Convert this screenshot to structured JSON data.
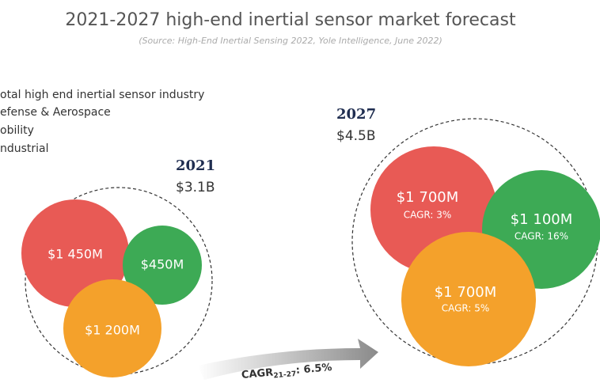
{
  "header": {
    "title": "2021-2027 high-end inertial sensor market forecast",
    "source": "(Source: High-End Inertial Sensing 2022, Yole Intelligence, June 2022)"
  },
  "legend": [
    "otal high end inertial sensor industry",
    "efense & Aerospace",
    "obility",
    "ndustrial"
  ],
  "year_2021": {
    "year": "2021",
    "total": "$3.1B",
    "bubbles": [
      {
        "value": "$1 450M"
      },
      {
        "value": "$450M"
      },
      {
        "value": "$1 200M"
      }
    ]
  },
  "year_2027": {
    "year": "2027",
    "total": "$4.5B",
    "bubbles": [
      {
        "value": "$1 700M",
        "cagr": "CAGR: 3%"
      },
      {
        "value": "$1 100M",
        "cagr": "CAGR: 16%"
      },
      {
        "value": "$1 700M",
        "cagr": "CAGR: 5%"
      }
    ]
  },
  "arrow": {
    "label": "CAGR",
    "subscript": "21-27",
    "value": ": 6.5%"
  }
}
